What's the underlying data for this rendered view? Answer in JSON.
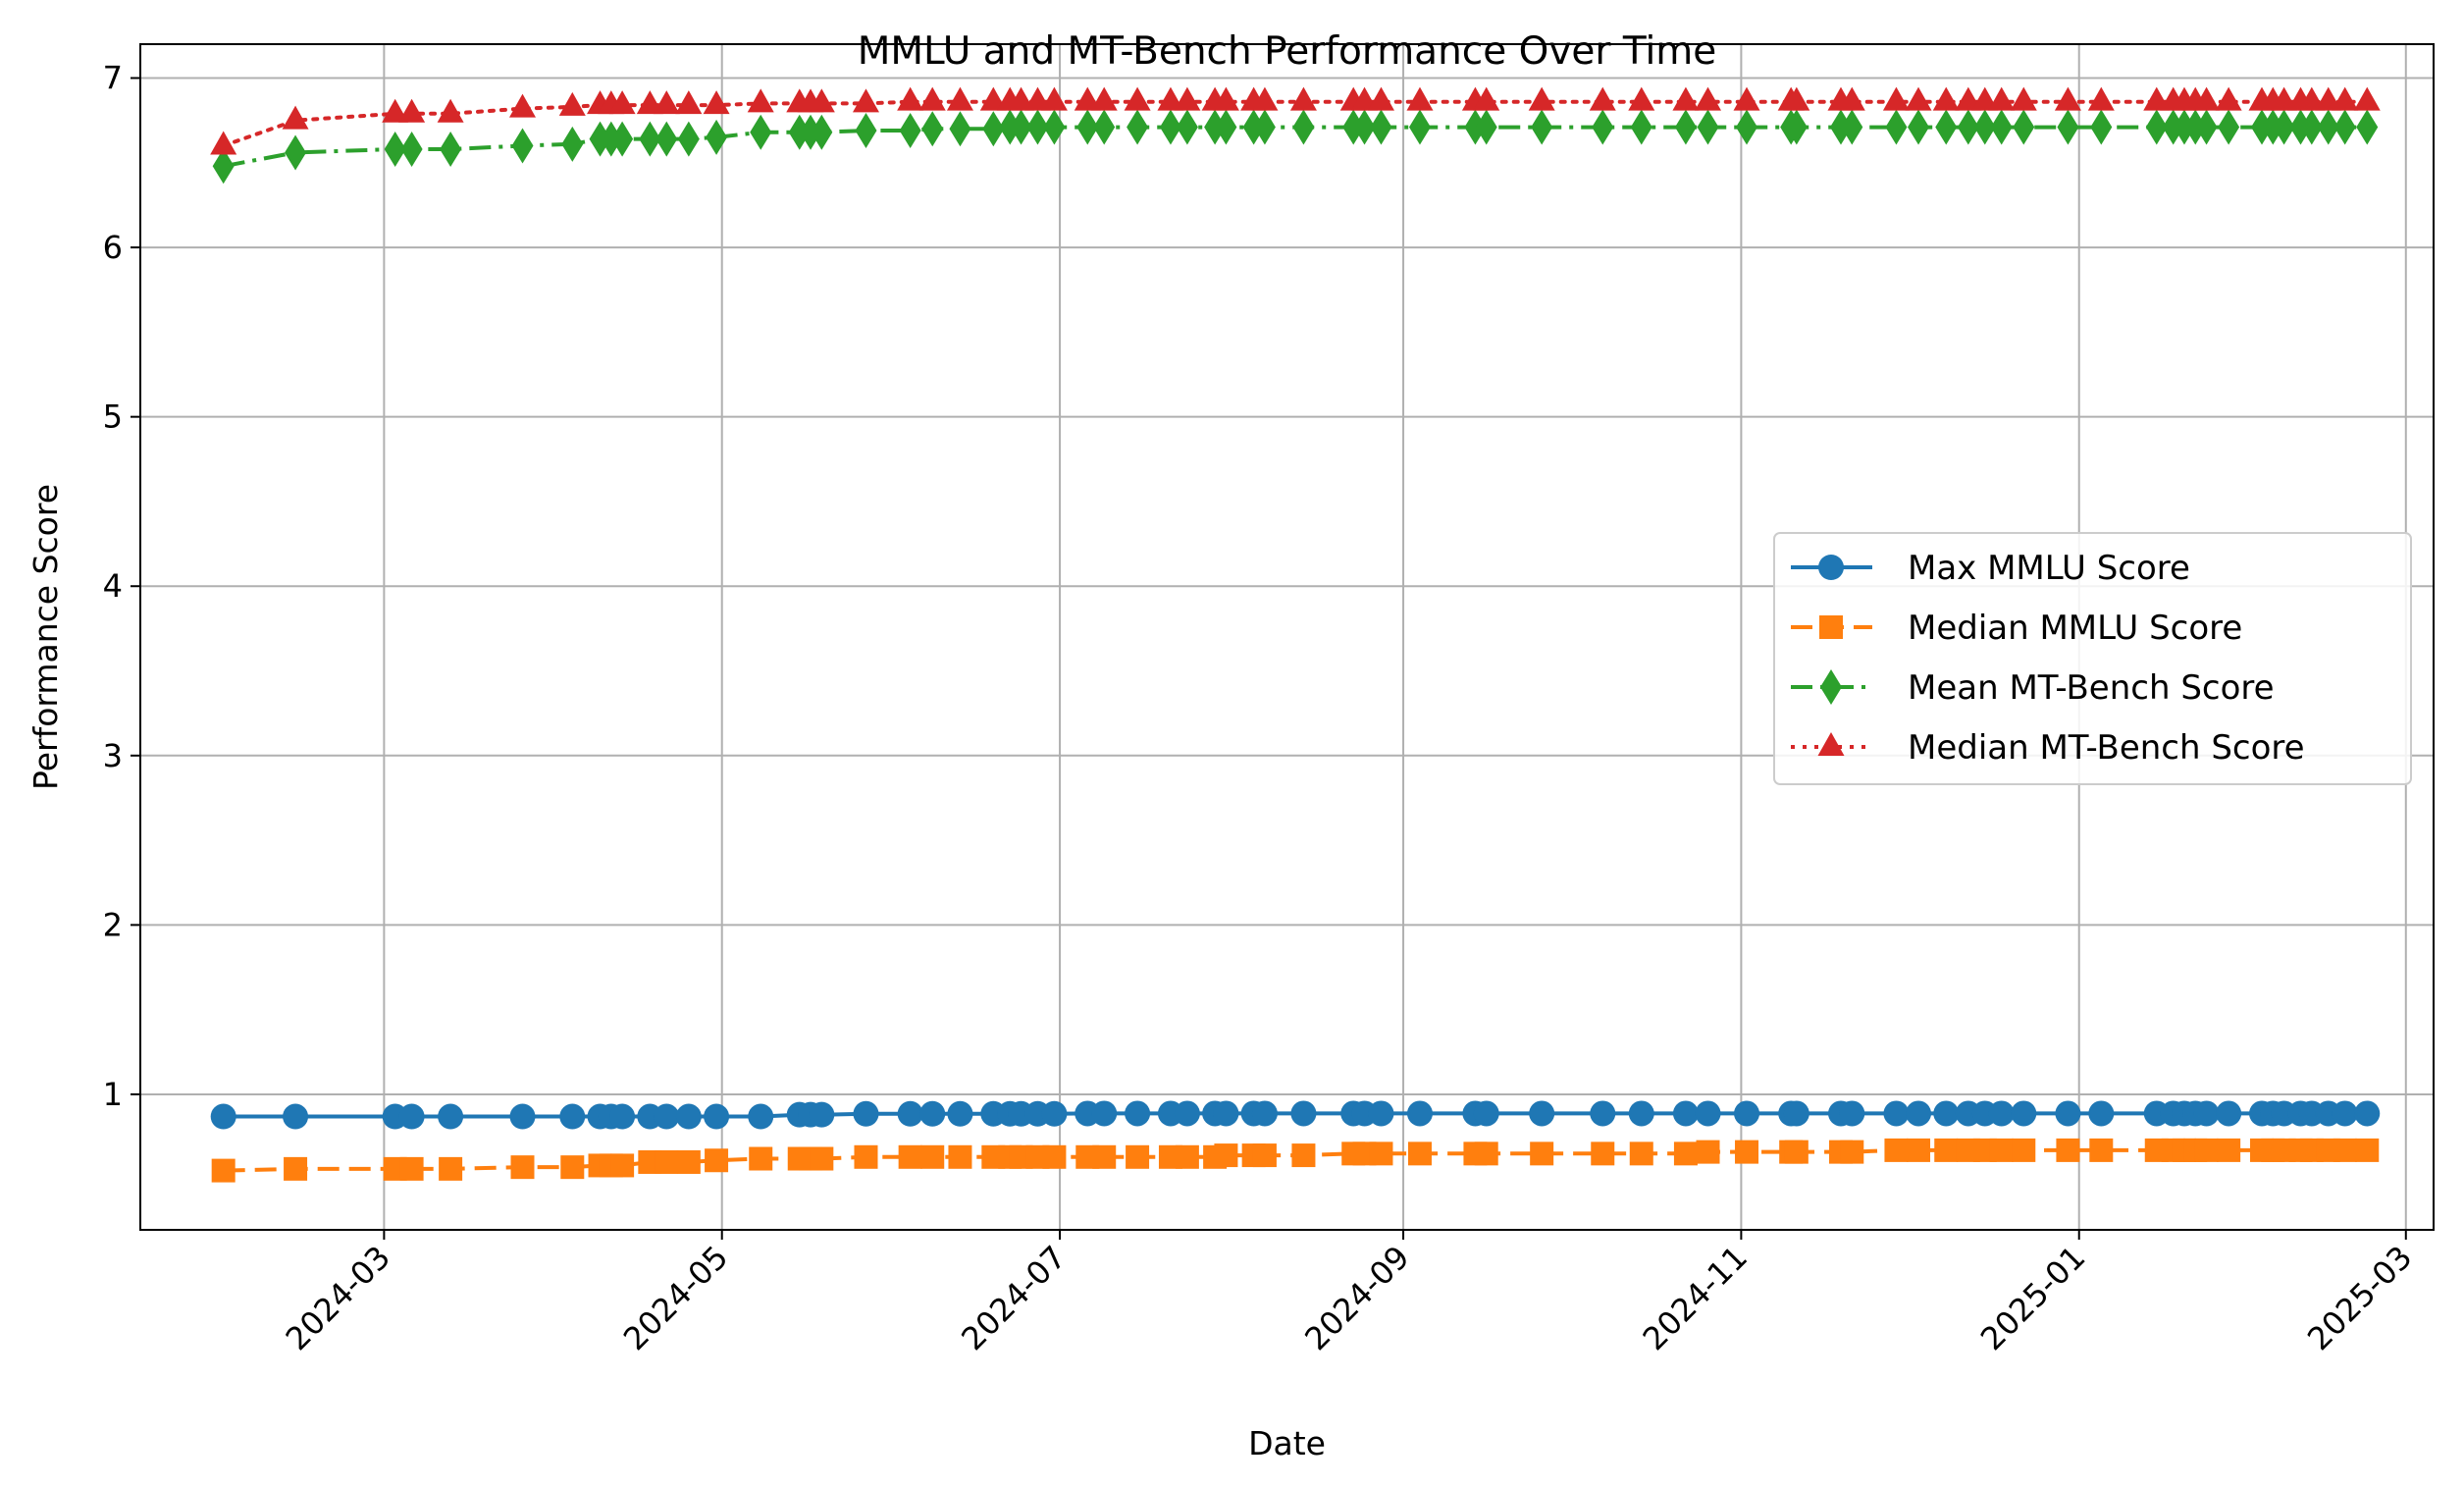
{
  "chart_data": {
    "type": "line",
    "title": "MMLU and MT-Bench Performance Over Time",
    "xlabel": "Date",
    "ylabel": "Performance Score",
    "x_axis_type": "date",
    "xlim": [
      "2024-01-17",
      "2025-03-06"
    ],
    "ylim": [
      0.2,
      7.2
    ],
    "x_ticks": [
      "2024-03",
      "2024-05",
      "2024-07",
      "2024-09",
      "2024-11",
      "2025-01",
      "2025-03"
    ],
    "y_ticks": [
      "1",
      "2",
      "3",
      "4",
      "5",
      "6",
      "7"
    ],
    "grid": true,
    "legend_position": "center-right",
    "x": [
      "2024-02-01",
      "2024-02-14",
      "2024-03-03",
      "2024-03-06",
      "2024-03-13",
      "2024-03-26",
      "2024-04-04",
      "2024-04-09",
      "2024-04-11",
      "2024-04-13",
      "2024-04-18",
      "2024-04-21",
      "2024-04-25",
      "2024-04-30",
      "2024-05-08",
      "2024-05-15",
      "2024-05-17",
      "2024-05-19",
      "2024-05-27",
      "2024-06-04",
      "2024-06-08",
      "2024-06-13",
      "2024-06-19",
      "2024-06-22",
      "2024-06-24",
      "2024-06-27",
      "2024-06-30",
      "2024-07-06",
      "2024-07-09",
      "2024-07-15",
      "2024-07-21",
      "2024-07-24",
      "2024-07-29",
      "2024-07-31",
      "2024-08-05",
      "2024-08-07",
      "2024-08-14",
      "2024-08-23",
      "2024-08-25",
      "2024-08-28",
      "2024-09-04",
      "2024-09-14",
      "2024-09-16",
      "2024-09-26",
      "2024-10-07",
      "2024-10-14",
      "2024-10-22",
      "2024-10-26",
      "2024-11-02",
      "2024-11-10",
      "2024-11-11",
      "2024-11-19",
      "2024-11-21",
      "2024-11-29",
      "2024-12-03",
      "2024-12-08",
      "2024-12-12",
      "2024-12-15",
      "2024-12-18",
      "2024-12-22",
      "2024-12-30",
      "2025-01-05",
      "2025-01-15",
      "2025-01-18",
      "2025-01-20",
      "2025-01-22",
      "2025-01-24",
      "2025-01-28",
      "2025-02-03",
      "2025-02-05",
      "2025-02-07",
      "2025-02-10",
      "2025-02-12",
      "2025-02-15",
      "2025-02-18",
      "2025-02-22"
    ],
    "series": [
      {
        "name": "Max MMLU Score",
        "color": "#1f77b4",
        "marker": "circle",
        "linestyle": "solid",
        "values": [
          0.869,
          0.869,
          0.869,
          0.869,
          0.869,
          0.869,
          0.869,
          0.869,
          0.869,
          0.869,
          0.869,
          0.869,
          0.869,
          0.869,
          0.869,
          0.88,
          0.88,
          0.88,
          0.885,
          0.885,
          0.885,
          0.885,
          0.885,
          0.885,
          0.885,
          0.885,
          0.885,
          0.887,
          0.887,
          0.887,
          0.887,
          0.887,
          0.887,
          0.887,
          0.887,
          0.887,
          0.887,
          0.887,
          0.887,
          0.887,
          0.887,
          0.887,
          0.887,
          0.887,
          0.887,
          0.887,
          0.887,
          0.887,
          0.887,
          0.887,
          0.887,
          0.887,
          0.887,
          0.887,
          0.887,
          0.887,
          0.887,
          0.887,
          0.887,
          0.887,
          0.887,
          0.887,
          0.887,
          0.887,
          0.887,
          0.887,
          0.887,
          0.887,
          0.887,
          0.887,
          0.887,
          0.887,
          0.887,
          0.887,
          0.887,
          0.887
        ]
      },
      {
        "name": "Median MMLU Score",
        "color": "#ff7f0e",
        "marker": "square",
        "linestyle": "dashed",
        "values": [
          0.55,
          0.56,
          0.56,
          0.56,
          0.56,
          0.57,
          0.57,
          0.58,
          0.58,
          0.58,
          0.6,
          0.6,
          0.6,
          0.61,
          0.62,
          0.62,
          0.62,
          0.62,
          0.63,
          0.63,
          0.63,
          0.63,
          0.63,
          0.63,
          0.63,
          0.63,
          0.63,
          0.63,
          0.63,
          0.63,
          0.63,
          0.63,
          0.63,
          0.64,
          0.64,
          0.64,
          0.64,
          0.65,
          0.65,
          0.65,
          0.65,
          0.65,
          0.65,
          0.65,
          0.65,
          0.65,
          0.65,
          0.66,
          0.66,
          0.66,
          0.66,
          0.66,
          0.66,
          0.67,
          0.67,
          0.67,
          0.67,
          0.67,
          0.67,
          0.67,
          0.67,
          0.67,
          0.67,
          0.67,
          0.67,
          0.67,
          0.67,
          0.67,
          0.67,
          0.67,
          0.67,
          0.67,
          0.67,
          0.67,
          0.67,
          0.67
        ]
      },
      {
        "name": "Mean MT-Bench Score",
        "color": "#2ca02c",
        "marker": "diamond",
        "linestyle": "dashdot",
        "values": [
          6.48,
          6.56,
          6.58,
          6.58,
          6.58,
          6.6,
          6.61,
          6.64,
          6.64,
          6.64,
          6.64,
          6.64,
          6.64,
          6.65,
          6.68,
          6.68,
          6.68,
          6.68,
          6.69,
          6.69,
          6.7,
          6.7,
          6.7,
          6.71,
          6.71,
          6.71,
          6.71,
          6.71,
          6.71,
          6.71,
          6.71,
          6.71,
          6.71,
          6.71,
          6.71,
          6.71,
          6.71,
          6.71,
          6.71,
          6.71,
          6.71,
          6.71,
          6.71,
          6.71,
          6.71,
          6.71,
          6.71,
          6.71,
          6.71,
          6.71,
          6.71,
          6.71,
          6.71,
          6.71,
          6.71,
          6.71,
          6.71,
          6.71,
          6.71,
          6.71,
          6.71,
          6.71,
          6.71,
          6.71,
          6.71,
          6.71,
          6.71,
          6.71,
          6.71,
          6.71,
          6.71,
          6.71,
          6.71,
          6.71,
          6.71,
          6.71
        ]
      },
      {
        "name": "Median MT-Bench Score",
        "color": "#d62728",
        "marker": "triangle",
        "linestyle": "dotted",
        "values": [
          6.6,
          6.75,
          6.79,
          6.79,
          6.79,
          6.82,
          6.83,
          6.84,
          6.84,
          6.84,
          6.84,
          6.84,
          6.84,
          6.84,
          6.85,
          6.85,
          6.85,
          6.85,
          6.85,
          6.86,
          6.86,
          6.86,
          6.86,
          6.86,
          6.86,
          6.86,
          6.86,
          6.86,
          6.86,
          6.86,
          6.86,
          6.86,
          6.86,
          6.86,
          6.86,
          6.86,
          6.86,
          6.86,
          6.86,
          6.86,
          6.86,
          6.86,
          6.86,
          6.86,
          6.86,
          6.86,
          6.86,
          6.86,
          6.86,
          6.86,
          6.86,
          6.86,
          6.86,
          6.86,
          6.86,
          6.86,
          6.86,
          6.86,
          6.86,
          6.86,
          6.86,
          6.86,
          6.86,
          6.86,
          6.86,
          6.86,
          6.86,
          6.86,
          6.86,
          6.86,
          6.86,
          6.86,
          6.86,
          6.86,
          6.86,
          6.86
        ]
      }
    ]
  }
}
